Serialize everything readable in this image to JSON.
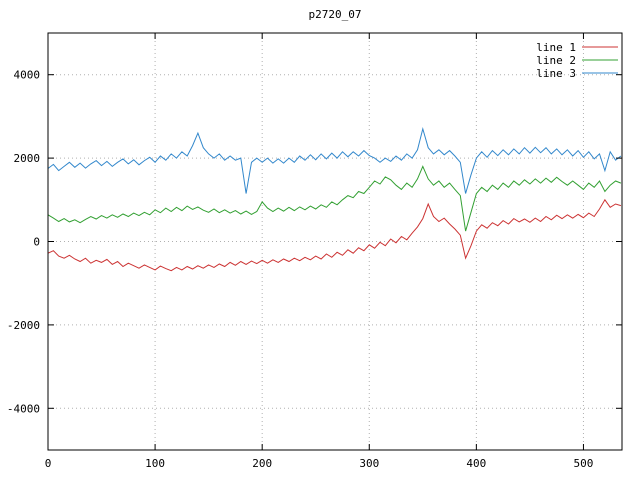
{
  "window": {
    "title": "p2720_07"
  },
  "chart_data": {
    "type": "line",
    "title": "p2720_07",
    "xlabel": "",
    "ylabel": "",
    "xlim": [
      0,
      536
    ],
    "ylim": [
      -5000,
      5000
    ],
    "x_ticks": [
      0,
      100,
      200,
      300,
      400,
      500
    ],
    "y_ticks": [
      -4000,
      -2000,
      0,
      2000,
      4000
    ],
    "grid": true,
    "grid_color": "#b0b0b0",
    "border_color": "#000000",
    "legend_position": "top-right-inside",
    "x_start": 0,
    "x_step": 5,
    "series": [
      {
        "name": "line 1",
        "color": "#cc3333",
        "values": [
          -280,
          -220,
          -350,
          -400,
          -330,
          -420,
          -480,
          -400,
          -520,
          -450,
          -500,
          -430,
          -550,
          -480,
          -600,
          -520,
          -580,
          -640,
          -560,
          -620,
          -680,
          -590,
          -650,
          -700,
          -620,
          -680,
          -600,
          -660,
          -580,
          -640,
          -560,
          -620,
          -540,
          -600,
          -500,
          -570,
          -480,
          -550,
          -470,
          -530,
          -450,
          -520,
          -440,
          -500,
          -420,
          -480,
          -400,
          -460,
          -380,
          -440,
          -350,
          -420,
          -300,
          -380,
          -260,
          -330,
          -200,
          -280,
          -150,
          -220,
          -80,
          -160,
          -20,
          -100,
          60,
          -30,
          120,
          40,
          200,
          350,
          550,
          900,
          600,
          480,
          560,
          420,
          300,
          150,
          -400,
          -100,
          250,
          400,
          320,
          450,
          380,
          500,
          420,
          550,
          470,
          540,
          460,
          560,
          480,
          600,
          520,
          630,
          550,
          640,
          560,
          650,
          570,
          680,
          600,
          780,
          1000,
          820,
          900,
          860
        ]
      },
      {
        "name": "line 2",
        "color": "#33a033",
        "values": [
          640,
          560,
          480,
          550,
          470,
          520,
          450,
          530,
          600,
          540,
          620,
          560,
          640,
          580,
          660,
          600,
          680,
          620,
          700,
          640,
          760,
          690,
          800,
          720,
          820,
          740,
          850,
          770,
          830,
          750,
          700,
          780,
          690,
          760,
          680,
          740,
          660,
          730,
          650,
          720,
          950,
          800,
          720,
          800,
          730,
          820,
          740,
          830,
          760,
          850,
          780,
          880,
          820,
          950,
          880,
          1000,
          1100,
          1050,
          1200,
          1150,
          1300,
          1450,
          1380,
          1550,
          1480,
          1350,
          1250,
          1400,
          1300,
          1500,
          1800,
          1500,
          1350,
          1450,
          1300,
          1400,
          1250,
          1100,
          250,
          700,
          1150,
          1300,
          1200,
          1350,
          1250,
          1400,
          1300,
          1450,
          1350,
          1480,
          1380,
          1500,
          1400,
          1520,
          1420,
          1540,
          1440,
          1350,
          1450,
          1350,
          1250,
          1400,
          1300,
          1450,
          1200,
          1350,
          1450,
          1400
        ]
      },
      {
        "name": "line 3",
        "color": "#3388cc",
        "values": [
          1750,
          1850,
          1700,
          1800,
          1900,
          1780,
          1880,
          1760,
          1860,
          1940,
          1820,
          1920,
          1800,
          1900,
          1980,
          1860,
          1960,
          1840,
          1940,
          2020,
          1900,
          2050,
          1950,
          2100,
          2000,
          2150,
          2050,
          2300,
          2600,
          2250,
          2100,
          2000,
          2100,
          1950,
          2050,
          1950,
          2000,
          1150,
          1900,
          2000,
          1900,
          2000,
          1880,
          1980,
          1880,
          2000,
          1900,
          2050,
          1950,
          2080,
          1960,
          2100,
          1980,
          2120,
          2000,
          2150,
          2030,
          2150,
          2050,
          2180,
          2060,
          2000,
          1900,
          2000,
          1920,
          2050,
          1950,
          2100,
          2000,
          2200,
          2700,
          2250,
          2100,
          2200,
          2080,
          2180,
          2050,
          1900,
          1150,
          1600,
          2000,
          2150,
          2020,
          2180,
          2060,
          2200,
          2080,
          2220,
          2100,
          2250,
          2120,
          2260,
          2130,
          2250,
          2100,
          2220,
          2080,
          2200,
          2050,
          2180,
          2020,
          2150,
          1980,
          2100,
          1700,
          2150,
          1950,
          2050
        ]
      }
    ]
  }
}
